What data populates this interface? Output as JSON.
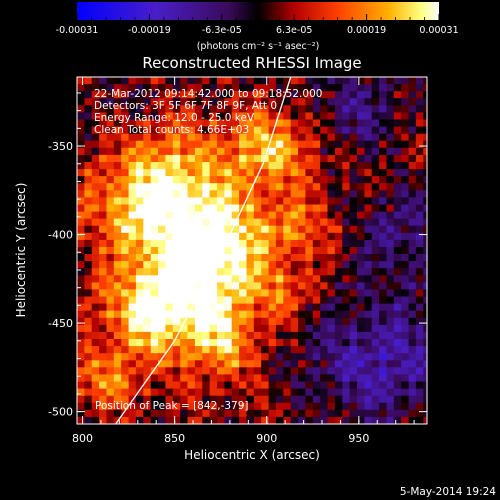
{
  "chart_data": {
    "type": "heatmap",
    "title": "Reconstructed RHESSI Image",
    "xlabel": "Heliocentric X (arcsec)",
    "ylabel": "Heliocentric Y (arcsec)",
    "xlim": [
      797,
      987
    ],
    "ylim": [
      -507,
      -311
    ],
    "x_ticks": [
      "800",
      "850",
      "900",
      "950"
    ],
    "y_ticks": [
      "-350",
      "-400",
      "-450",
      "-500"
    ],
    "colorbar": {
      "colormap": "blue-purple-black-red-orange-yellow-white",
      "range": [
        -0.00031,
        0.00031
      ],
      "tick_labels": [
        "-0.00031",
        "-0.00019",
        "-6.3e-05",
        "6.3e-05",
        "0.00019",
        "0.00031"
      ],
      "unit_label": "(photons cm⁻² s⁻¹ asec⁻²)"
    },
    "annotations": [
      "22-Mar-2012 09:14:42.000 to 09:18:52.000",
      "Detectors: 3F 5F 6F 7F 8F 9F, Att 0",
      "Energy Range: 12.0 - 25.0 keV",
      "Clean      Total counts: 4.66E+03"
    ],
    "peak_label": "Position of Peak = [842,-379]",
    "peak_position": [
      842,
      -379
    ],
    "limb_curve": [
      [
        818,
        -507
      ],
      [
        850,
        -460
      ],
      [
        880,
        -400
      ],
      [
        898,
        -360
      ],
      [
        913,
        -311
      ]
    ],
    "emission_blobs": [
      {
        "x": 842,
        "y": -379,
        "sigma": 24,
        "value": 0.00031
      },
      {
        "x": 860,
        "y": -425,
        "sigma": 20,
        "value": 0.00024
      },
      {
        "x": 835,
        "y": -445,
        "sigma": 18,
        "value": 0.00021
      },
      {
        "x": 880,
        "y": -400,
        "sigma": 16,
        "value": 0.00018
      },
      {
        "x": 875,
        "y": -460,
        "sigma": 14,
        "value": 0.00017
      },
      {
        "x": 900,
        "y": -350,
        "sigma": 16,
        "value": 0.00018
      },
      {
        "x": 918,
        "y": -395,
        "sigma": 12,
        "value": 0.00014
      },
      {
        "x": 810,
        "y": -480,
        "sigma": 12,
        "value": 0.00012
      },
      {
        "x": 905,
        "y": -430,
        "sigma": 10,
        "value": 0.00011
      },
      {
        "x": 960,
        "y": -470,
        "sigma": 28,
        "value": -0.00016
      },
      {
        "x": 948,
        "y": -330,
        "sigma": 18,
        "value": -0.00011
      },
      {
        "x": 815,
        "y": -335,
        "sigma": 14,
        "value": -5e-05
      },
      {
        "x": 975,
        "y": -400,
        "sigma": 22,
        "value": -0.0001
      }
    ],
    "generated_date": "5-May-2014 19:24"
  }
}
